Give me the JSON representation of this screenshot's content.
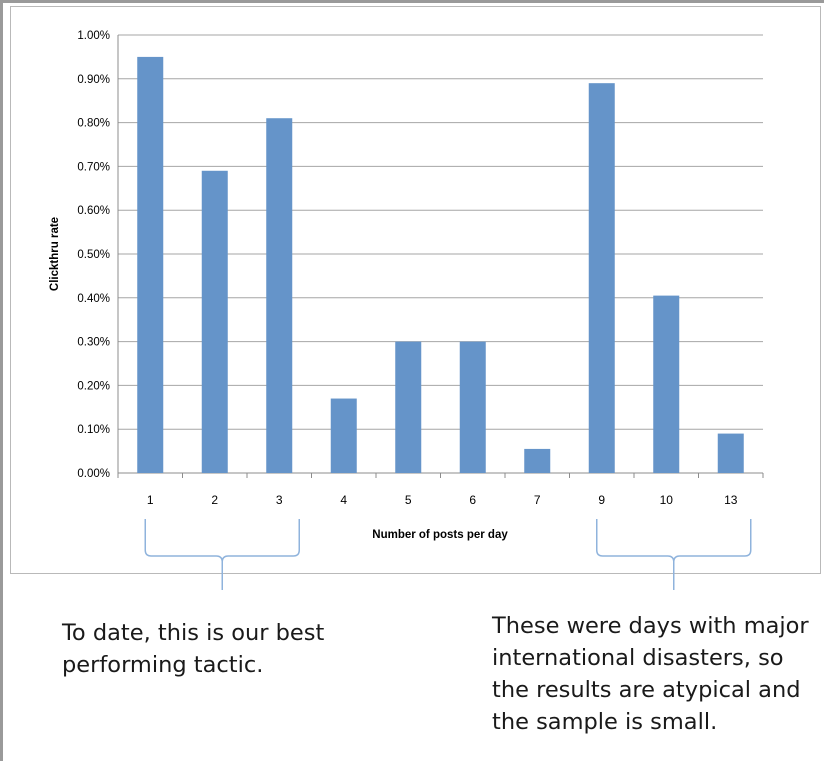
{
  "chart_data": {
    "type": "bar",
    "categories": [
      "1",
      "2",
      "3",
      "4",
      "5",
      "6",
      "7",
      "9",
      "10",
      "13"
    ],
    "values": [
      0.95,
      0.69,
      0.81,
      0.17,
      0.3,
      0.3,
      0.055,
      0.89,
      0.405,
      0.09
    ],
    "value_format": "percent",
    "ylim": [
      0,
      1.0
    ],
    "y_ticks": [
      "0.00%",
      "0.10%",
      "0.20%",
      "0.30%",
      "0.40%",
      "0.50%",
      "0.60%",
      "0.70%",
      "0.80%",
      "0.90%",
      "1.00%"
    ],
    "xlabel": "Number of posts per day",
    "ylabel": "Clickthru rate",
    "grid": true,
    "bar_color": "#6594c9",
    "bracket_color": "#8fb3dc",
    "brackets": [
      {
        "from_category": "1",
        "to_category": "3"
      },
      {
        "from_category": "9",
        "to_category": "13"
      }
    ]
  },
  "annotations": {
    "left": "To date, this is our best performing tactic.",
    "right": "These were days with major international disasters, so the results are atypical and the sample is small."
  }
}
